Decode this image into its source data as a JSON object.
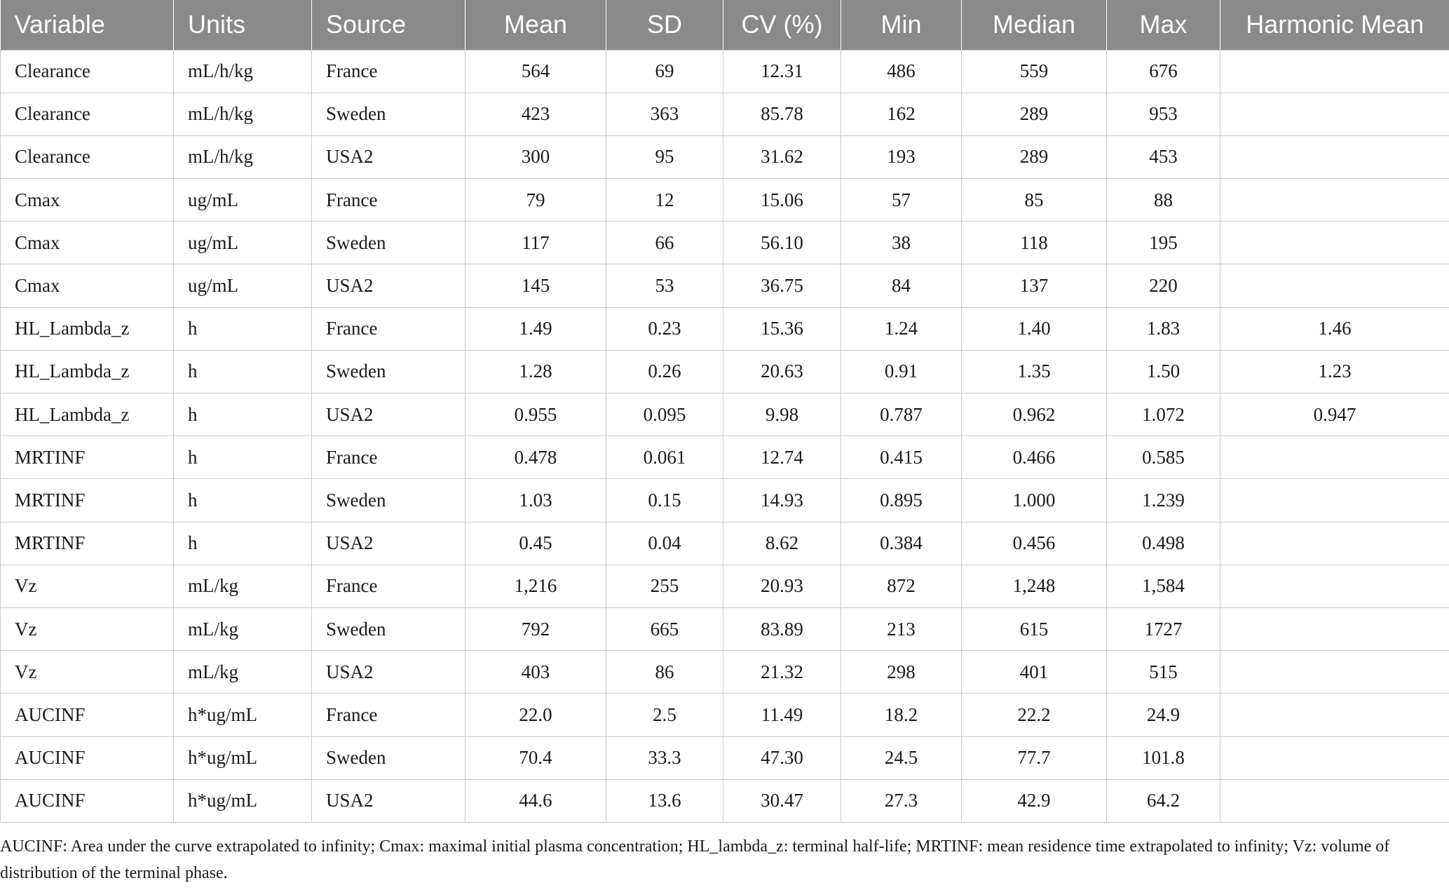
{
  "table": {
    "headers": [
      "Variable",
      "Units",
      "Source",
      "Mean",
      "SD",
      "CV (%)",
      "Min",
      "Median",
      "Max",
      "Harmonic Mean"
    ],
    "rows": [
      [
        "Clearance",
        "mL/h/kg",
        "France",
        "564",
        "69",
        "12.31",
        "486",
        "559",
        "676",
        ""
      ],
      [
        "Clearance",
        "mL/h/kg",
        "Sweden",
        "423",
        "363",
        "85.78",
        "162",
        "289",
        "953",
        ""
      ],
      [
        "Clearance",
        "mL/h/kg",
        "USA2",
        "300",
        "95",
        "31.62",
        "193",
        "289",
        "453",
        ""
      ],
      [
        "Cmax",
        "ug/mL",
        "France",
        "79",
        "12",
        "15.06",
        "57",
        "85",
        "88",
        ""
      ],
      [
        "Cmax",
        "ug/mL",
        "Sweden",
        "117",
        "66",
        "56.10",
        "38",
        "118",
        "195",
        ""
      ],
      [
        "Cmax",
        "ug/mL",
        "USA2",
        "145",
        "53",
        "36.75",
        "84",
        "137",
        "220",
        ""
      ],
      [
        "HL_Lambda_z",
        "h",
        "France",
        "1.49",
        "0.23",
        "15.36",
        "1.24",
        "1.40",
        "1.83",
        "1.46"
      ],
      [
        "HL_Lambda_z",
        "h",
        "Sweden",
        "1.28",
        "0.26",
        "20.63",
        "0.91",
        "1.35",
        "1.50",
        "1.23"
      ],
      [
        "HL_Lambda_z",
        "h",
        "USA2",
        "0.955",
        "0.095",
        "9.98",
        "0.787",
        "0.962",
        "1.072",
        "0.947"
      ],
      [
        "MRTINF",
        "h",
        "France",
        "0.478",
        "0.061",
        "12.74",
        "0.415",
        "0.466",
        "0.585",
        ""
      ],
      [
        "MRTINF",
        "h",
        "Sweden",
        "1.03",
        "0.15",
        "14.93",
        "0.895",
        "1.000",
        "1.239",
        ""
      ],
      [
        "MRTINF",
        "h",
        "USA2",
        "0.45",
        "0.04",
        "8.62",
        "0.384",
        "0.456",
        "0.498",
        ""
      ],
      [
        "Vz",
        "mL/kg",
        "France",
        "1,216",
        "255",
        "20.93",
        "872",
        "1,248",
        "1,584",
        ""
      ],
      [
        "Vz",
        "mL/kg",
        "Sweden",
        "792",
        "665",
        "83.89",
        "213",
        "615",
        "1727",
        ""
      ],
      [
        "Vz",
        "mL/kg",
        "USA2",
        "403",
        "86",
        "21.32",
        "298",
        "401",
        "515",
        ""
      ],
      [
        "AUCINF",
        "h*ug/mL",
        "France",
        "22.0",
        "2.5",
        "11.49",
        "18.2",
        "22.2",
        "24.9",
        ""
      ],
      [
        "AUCINF",
        "h*ug/mL",
        "Sweden",
        "70.4",
        "33.3",
        "47.30",
        "24.5",
        "77.7",
        "101.8",
        ""
      ],
      [
        "AUCINF",
        "h*ug/mL",
        "USA2",
        "44.6",
        "13.6",
        "30.47",
        "27.3",
        "42.9",
        "64.2",
        ""
      ]
    ]
  },
  "footnote": "AUCINF: Area under the curve extrapolated to infinity; Cmax: maximal initial plasma concentration; HL_lambda_z: terminal half-life; MRTINF: mean residence time extrapolated to infinity; Vz: volume of distribution of the terminal phase."
}
